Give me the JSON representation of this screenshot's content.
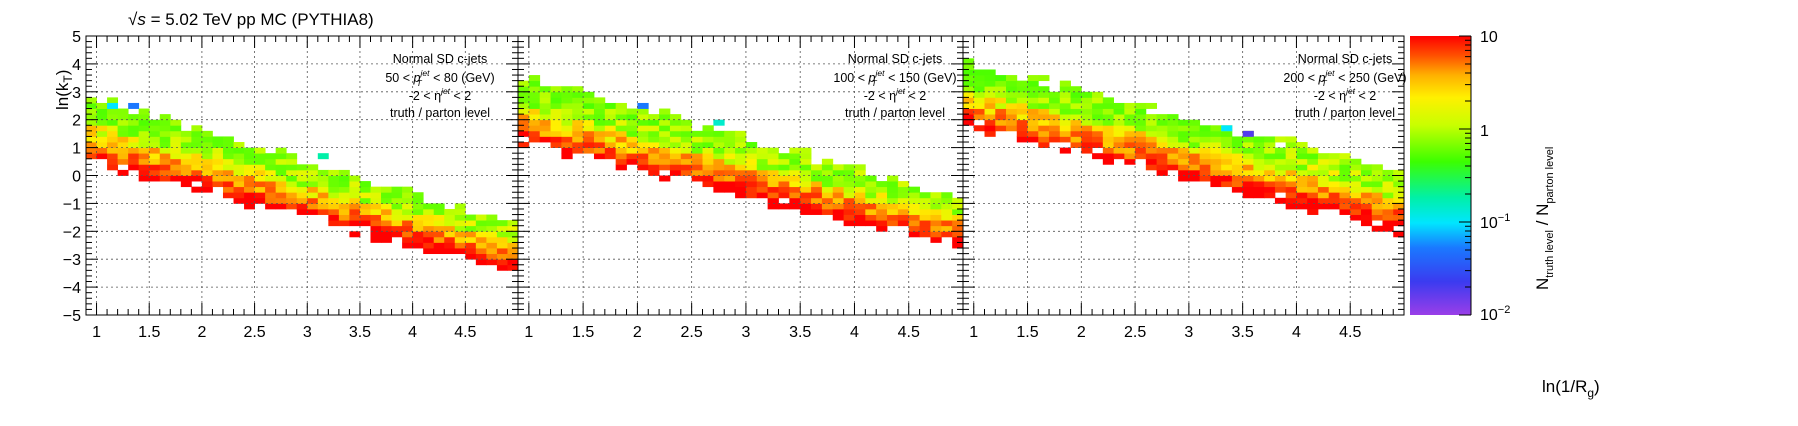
{
  "header": {
    "sqrt_symbol": "√",
    "s_symbol": "s",
    "energy_text": " = 5.02 TeV pp MC (PYTHIA8)"
  },
  "axes": {
    "ylabel_main": "ln(k",
    "ylabel_sub": "T",
    "ylabel_close": ")",
    "xlabel_main": "ln(1/R",
    "xlabel_sub": "g",
    "xlabel_close": ")",
    "y_ticks": [
      "5",
      "4",
      "3",
      "2",
      "1",
      "0",
      "−1",
      "−2",
      "−3",
      "−4",
      "−5"
    ],
    "x_ticks": [
      "1",
      "1.5",
      "2",
      "2.5",
      "3",
      "3.5",
      "4",
      "4.5"
    ]
  },
  "colorbar": {
    "labels": [
      {
        "base": "10",
        "exp": ""
      },
      {
        "base": "1",
        "exp": ""
      },
      {
        "base": "10",
        "exp": "−1"
      },
      {
        "base": "10",
        "exp": "−2"
      }
    ],
    "title_N1": "N",
    "title_sub1": "truth level",
    "title_slash": " / N",
    "title_sub2": "parton level"
  },
  "panels": [
    {
      "ann_line1": "Normal SD c-jets",
      "ann_pt_low": "50 <",
      "ann_pt_high": "< 80 (GeV)",
      "ann_eta": "-2 < η",
      "ann_eta_tail": " < 2",
      "ann_line4": "truth / parton level"
    },
    {
      "ann_line1": "Normal SD c-jets",
      "ann_pt_low": "100 <",
      "ann_pt_high": "< 150 (GeV)",
      "ann_eta": "-2 < η",
      "ann_eta_tail": " < 2",
      "ann_line4": "truth / parton level"
    },
    {
      "ann_line1": "Normal SD c-jets",
      "ann_pt_low": "200 <",
      "ann_pt_high": "< 250 (GeV)",
      "ann_eta": "-2 < η",
      "ann_eta_tail": " < 2",
      "ann_line4": "truth / parton level"
    }
  ],
  "chart_data": [
    {
      "type": "heatmap",
      "pt_range": "50 < pT < 80 GeV",
      "x_range": [
        0.9,
        5.0
      ],
      "y_range": [
        -5,
        5
      ],
      "z_scale": "log",
      "z_range": [
        0.01,
        10
      ],
      "band": {
        "y_upper_at_x1": 2.7,
        "y_upper_at_x5": -1.7,
        "y_lower_at_x1": 0.6,
        "y_lower_at_x5": -3.5
      },
      "notable_cells": [
        {
          "x": 1.2,
          "y": 2.6,
          "z": 0.1
        },
        {
          "x": 1.4,
          "y": 2.4,
          "z": 0.05
        },
        {
          "x": 3.1,
          "y": 0.7,
          "z": 0.2
        }
      ],
      "colormap": "kBird-like rainbow (violet → blue → cyan → green → yellow → orange → red)",
      "grid": true
    },
    {
      "type": "heatmap",
      "pt_range": "100 < pT < 150 GeV",
      "x_range": [
        0.9,
        5.0
      ],
      "y_range": [
        -5,
        5
      ],
      "z_scale": "log",
      "z_range": [
        0.01,
        10
      ],
      "band": {
        "y_upper_at_x1": 3.5,
        "y_upper_at_x5": -0.8,
        "y_lower_at_x1": 1.2,
        "y_lower_at_x5": -2.6
      },
      "notable_cells": [
        {
          "x": 2.0,
          "y": 2.6,
          "z": 0.05
        },
        {
          "x": 2.7,
          "y": 1.8,
          "z": 0.15
        }
      ],
      "colormap": "kBird-like rainbow",
      "grid": true
    },
    {
      "type": "heatmap",
      "pt_range": "200 < pT < 250 GeV",
      "x_range": [
        0.9,
        5.0
      ],
      "y_range": [
        -5,
        5
      ],
      "z_scale": "log",
      "z_range": [
        0.01,
        10
      ],
      "band": {
        "y_upper_at_x1": 4.0,
        "y_upper_at_x5": 0.1,
        "y_lower_at_x1": 1.8,
        "y_lower_at_x5": -2.0
      },
      "notable_cells": [
        {
          "x": 3.5,
          "y": 1.5,
          "z": 0.02
        },
        {
          "x": 3.3,
          "y": 1.7,
          "z": 0.1
        }
      ],
      "colormap": "kBird-like rainbow",
      "grid": true
    }
  ]
}
